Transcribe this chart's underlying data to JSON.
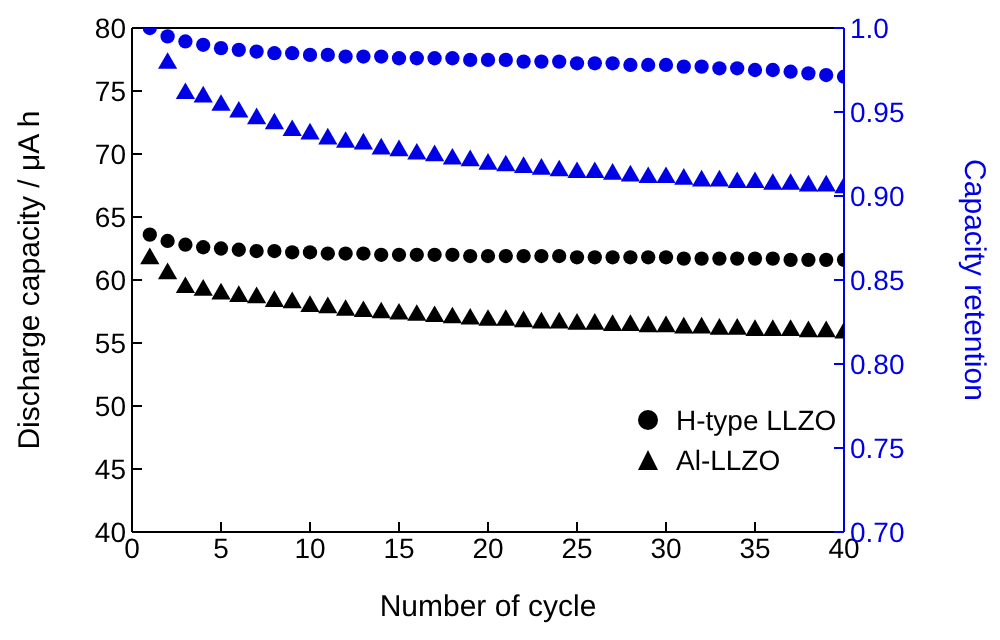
{
  "chart_data": {
    "type": "scatter",
    "xlabel": "Number of cycle",
    "ylabel": "Discharge capacity / μA h",
    "y2label": "Capacity retention",
    "x": [
      1,
      2,
      3,
      4,
      5,
      6,
      7,
      8,
      9,
      10,
      11,
      12,
      13,
      14,
      15,
      16,
      17,
      18,
      19,
      20,
      21,
      22,
      23,
      24,
      25,
      26,
      27,
      28,
      29,
      30,
      31,
      32,
      33,
      34,
      35,
      36,
      37,
      38,
      39,
      40
    ],
    "xlim": [
      0,
      40
    ],
    "xticks": [
      0,
      5,
      10,
      15,
      20,
      25,
      30,
      35,
      40
    ],
    "ylim": [
      40,
      80
    ],
    "yticks": [
      40,
      45,
      50,
      55,
      60,
      65,
      70,
      75,
      80
    ],
    "y2lim": [
      0.7,
      1.0
    ],
    "y2ticks": [
      {
        "value": 0.7,
        "label": "0.70"
      },
      {
        "value": 0.75,
        "label": "0.75"
      },
      {
        "value": 0.8,
        "label": "0.80"
      },
      {
        "value": 0.85,
        "label": "0.85"
      },
      {
        "value": 0.9,
        "label": "0.90"
      },
      {
        "value": 0.95,
        "label": "0.95"
      },
      {
        "value": 1.0,
        "label": "1.0"
      }
    ],
    "legend": "bottom right",
    "grid": false,
    "series": [
      {
        "name": "H-type LLZO",
        "color": "#000000",
        "marker": "circle",
        "values": [
          63.6,
          63.1,
          62.8,
          62.6,
          62.5,
          62.4,
          62.3,
          62.3,
          62.2,
          62.2,
          62.1,
          62.1,
          62.1,
          62.0,
          62.0,
          62.0,
          62.0,
          62.0,
          61.9,
          61.9,
          61.9,
          61.9,
          61.9,
          61.9,
          61.8,
          61.8,
          61.8,
          61.8,
          61.8,
          61.8,
          61.7,
          61.7,
          61.7,
          61.7,
          61.7,
          61.7,
          61.6,
          61.6,
          61.6,
          61.6
        ]
      },
      {
        "name": "Al-LLZO",
        "color": "#000000",
        "marker": "triangle",
        "values": [
          61.7,
          60.5,
          59.4,
          59.2,
          58.9,
          58.7,
          58.6,
          58.3,
          58.2,
          57.9,
          57.8,
          57.6,
          57.5,
          57.4,
          57.3,
          57.2,
          57.1,
          57.0,
          56.9,
          56.8,
          56.8,
          56.7,
          56.6,
          56.6,
          56.5,
          56.5,
          56.4,
          56.4,
          56.3,
          56.3,
          56.2,
          56.2,
          56.1,
          56.1,
          56.0,
          56.0,
          56.0,
          55.9,
          55.9,
          55.8
        ]
      },
      {
        "color": "#0000e6",
        "marker": "circle",
        "axis": "y2",
        "values": [
          1.0,
          0.995,
          0.992,
          0.99,
          0.988,
          0.987,
          0.986,
          0.985,
          0.985,
          0.984,
          0.984,
          0.983,
          0.983,
          0.983,
          0.982,
          0.982,
          0.982,
          0.982,
          0.981,
          0.981,
          0.981,
          0.98,
          0.98,
          0.98,
          0.979,
          0.979,
          0.979,
          0.978,
          0.978,
          0.978,
          0.977,
          0.977,
          0.976,
          0.976,
          0.975,
          0.975,
          0.974,
          0.973,
          0.972,
          0.971
        ]
      },
      {
        "color": "#0000e6",
        "marker": "triangle",
        "axis": "y2",
        "values": [
          null,
          0.979,
          0.961,
          0.959,
          0.954,
          0.95,
          0.946,
          0.943,
          0.939,
          0.937,
          0.934,
          0.932,
          0.931,
          0.928,
          0.927,
          0.925,
          0.924,
          0.922,
          0.921,
          0.919,
          0.918,
          0.917,
          0.916,
          0.915,
          0.914,
          0.914,
          0.913,
          0.912,
          0.911,
          0.911,
          0.91,
          0.909,
          0.909,
          0.908,
          0.908,
          0.907,
          0.907,
          0.906,
          0.906,
          0.905
        ]
      }
    ]
  }
}
